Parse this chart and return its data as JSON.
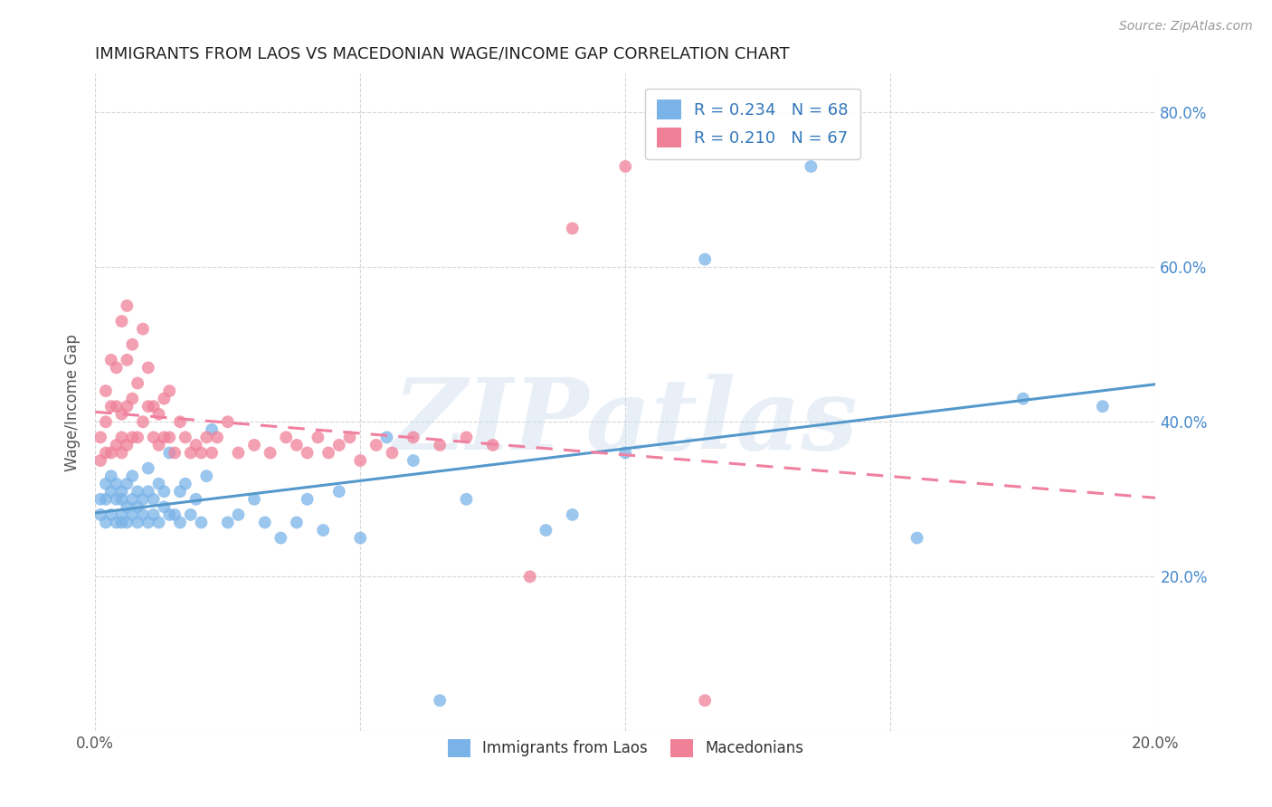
{
  "title": "IMMIGRANTS FROM LAOS VS MACEDONIAN WAGE/INCOME GAP CORRELATION CHART",
  "source": "Source: ZipAtlas.com",
  "ylabel": "Wage/Income Gap",
  "xlim": [
    0.0,
    0.2
  ],
  "ylim": [
    0.0,
    0.85
  ],
  "xtick_vals": [
    0.0,
    0.05,
    0.1,
    0.15,
    0.2
  ],
  "xtick_labels": [
    "0.0%",
    "",
    "",
    "",
    "20.0%"
  ],
  "ytick_vals": [
    0.0,
    0.2,
    0.4,
    0.6,
    0.8
  ],
  "ytick_labels": [
    "",
    "20.0%",
    "40.0%",
    "60.0%",
    "80.0%"
  ],
  "watermark": "ZIPatlas",
  "legend1_label": "R = 0.234   N = 68",
  "legend2_label": "R = 0.210   N = 67",
  "bottom_label1": "Immigrants from Laos",
  "bottom_label2": "Macedonians",
  "series1_color": "#7ab3e8",
  "series2_color": "#f08098",
  "trendline1_color": "#5599cc",
  "trendline2_color": "#f080a0",
  "background_color": "#ffffff",
  "grid_color": "#cccccc",
  "title_color": "#222222",
  "axis_label_color": "#555555",
  "right_axis_color": "#4488cc",
  "source_color": "#999999",
  "legend_text_color": "#3377bb",
  "series1_x": [
    0.001,
    0.001,
    0.002,
    0.002,
    0.002,
    0.003,
    0.003,
    0.003,
    0.004,
    0.004,
    0.004,
    0.005,
    0.005,
    0.005,
    0.005,
    0.006,
    0.006,
    0.006,
    0.007,
    0.007,
    0.007,
    0.008,
    0.008,
    0.008,
    0.009,
    0.009,
    0.01,
    0.01,
    0.01,
    0.011,
    0.011,
    0.012,
    0.012,
    0.013,
    0.013,
    0.014,
    0.014,
    0.015,
    0.016,
    0.016,
    0.017,
    0.018,
    0.019,
    0.02,
    0.021,
    0.022,
    0.025,
    0.027,
    0.03,
    0.032,
    0.035,
    0.038,
    0.04,
    0.043,
    0.046,
    0.05,
    0.055,
    0.06,
    0.065,
    0.07,
    0.085,
    0.09,
    0.1,
    0.115,
    0.135,
    0.155,
    0.175,
    0.19
  ],
  "series1_y": [
    0.28,
    0.3,
    0.27,
    0.3,
    0.32,
    0.28,
    0.31,
    0.33,
    0.27,
    0.3,
    0.32,
    0.28,
    0.3,
    0.27,
    0.31,
    0.29,
    0.27,
    0.32,
    0.28,
    0.3,
    0.33,
    0.27,
    0.29,
    0.31,
    0.28,
    0.3,
    0.27,
    0.31,
    0.34,
    0.28,
    0.3,
    0.27,
    0.32,
    0.29,
    0.31,
    0.28,
    0.36,
    0.28,
    0.27,
    0.31,
    0.32,
    0.28,
    0.3,
    0.27,
    0.33,
    0.39,
    0.27,
    0.28,
    0.3,
    0.27,
    0.25,
    0.27,
    0.3,
    0.26,
    0.31,
    0.25,
    0.38,
    0.35,
    0.04,
    0.3,
    0.26,
    0.28,
    0.36,
    0.61,
    0.73,
    0.25,
    0.43,
    0.42
  ],
  "series2_x": [
    0.001,
    0.001,
    0.002,
    0.002,
    0.002,
    0.003,
    0.003,
    0.003,
    0.004,
    0.004,
    0.004,
    0.005,
    0.005,
    0.005,
    0.005,
    0.006,
    0.006,
    0.006,
    0.006,
    0.007,
    0.007,
    0.007,
    0.008,
    0.008,
    0.009,
    0.009,
    0.01,
    0.01,
    0.011,
    0.011,
    0.012,
    0.012,
    0.013,
    0.013,
    0.014,
    0.014,
    0.015,
    0.016,
    0.017,
    0.018,
    0.019,
    0.02,
    0.021,
    0.022,
    0.023,
    0.025,
    0.027,
    0.03,
    0.033,
    0.036,
    0.038,
    0.04,
    0.042,
    0.044,
    0.046,
    0.048,
    0.05,
    0.053,
    0.056,
    0.06,
    0.065,
    0.07,
    0.075,
    0.082,
    0.09,
    0.1,
    0.115
  ],
  "series2_y": [
    0.35,
    0.38,
    0.36,
    0.4,
    0.44,
    0.36,
    0.42,
    0.48,
    0.37,
    0.42,
    0.47,
    0.36,
    0.41,
    0.53,
    0.38,
    0.37,
    0.42,
    0.48,
    0.55,
    0.38,
    0.43,
    0.5,
    0.38,
    0.45,
    0.4,
    0.52,
    0.42,
    0.47,
    0.38,
    0.42,
    0.37,
    0.41,
    0.38,
    0.43,
    0.38,
    0.44,
    0.36,
    0.4,
    0.38,
    0.36,
    0.37,
    0.36,
    0.38,
    0.36,
    0.38,
    0.4,
    0.36,
    0.37,
    0.36,
    0.38,
    0.37,
    0.36,
    0.38,
    0.36,
    0.37,
    0.38,
    0.35,
    0.37,
    0.36,
    0.38,
    0.37,
    0.38,
    0.37,
    0.2,
    0.65,
    0.73,
    0.04
  ]
}
